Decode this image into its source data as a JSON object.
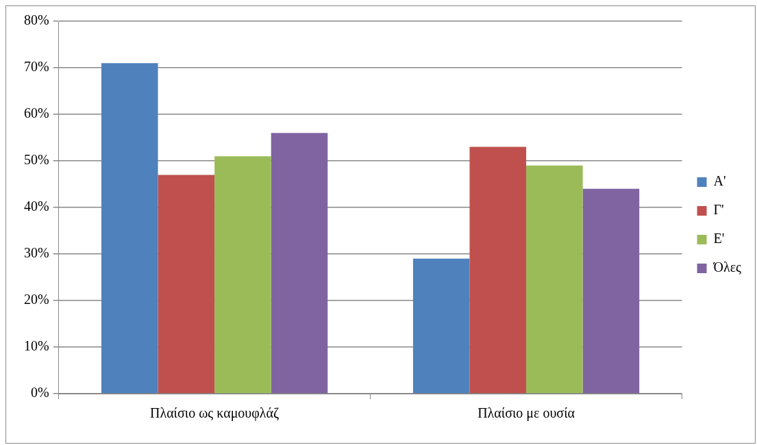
{
  "chart_data": {
    "type": "bar",
    "categories": [
      "Πλαίσιο ως καμουφλάζ",
      "Πλαίσιο με ουσία"
    ],
    "series": [
      {
        "name": "Α'",
        "color": "#4f81bd",
        "values": [
          71,
          29
        ]
      },
      {
        "name": "Γ'",
        "color": "#c0504d",
        "values": [
          47,
          53
        ]
      },
      {
        "name": "Ε'",
        "color": "#9bbb59",
        "values": [
          51,
          49
        ]
      },
      {
        "name": "Όλες",
        "color": "#8064a2",
        "values": [
          56,
          44
        ]
      }
    ],
    "ylim": [
      0,
      80
    ],
    "yticks": [
      {
        "value": 0,
        "label": "0%"
      },
      {
        "value": 10,
        "label": "10%"
      },
      {
        "value": 20,
        "label": "20%"
      },
      {
        "value": 30,
        "label": "30%"
      },
      {
        "value": 40,
        "label": "40%"
      },
      {
        "value": 50,
        "label": "50%"
      },
      {
        "value": 60,
        "label": "60%"
      },
      {
        "value": 70,
        "label": "70%"
      },
      {
        "value": 80,
        "label": "80%"
      }
    ],
    "grid": "y",
    "legend": "right"
  }
}
